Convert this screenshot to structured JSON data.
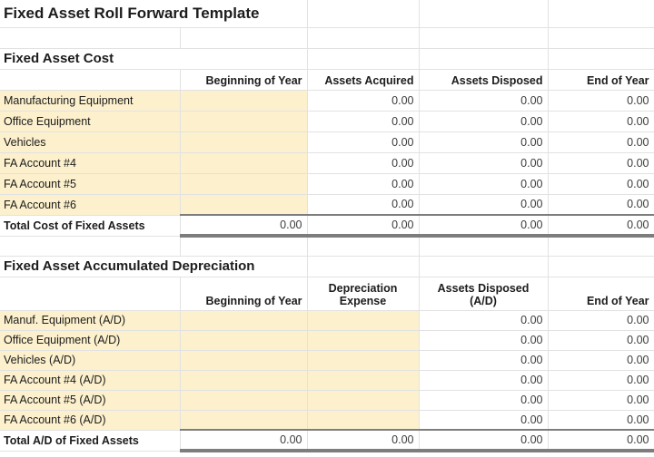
{
  "title": "Fixed Asset Roll Forward Template",
  "colors": {
    "input_cell_bg": "#fcf0cd",
    "gridline": "#e2e2e2",
    "total_rule": "#7d7d7d"
  },
  "sections": [
    {
      "heading": "Fixed Asset Cost",
      "columns": [
        "Beginning of Year",
        "Assets Acquired",
        "Assets Disposed",
        "End of Year"
      ],
      "rows": [
        {
          "label": "Manufacturing Equipment",
          "values": [
            null,
            "0.00",
            "0.00",
            "0.00"
          ]
        },
        {
          "label": "Office Equipment",
          "values": [
            null,
            "0.00",
            "0.00",
            "0.00"
          ]
        },
        {
          "label": "Vehicles",
          "values": [
            null,
            "0.00",
            "0.00",
            "0.00"
          ]
        },
        {
          "label": "FA Account #4",
          "values": [
            null,
            "0.00",
            "0.00",
            "0.00"
          ]
        },
        {
          "label": "FA Account #5",
          "values": [
            null,
            "0.00",
            "0.00",
            "0.00"
          ]
        },
        {
          "label": "FA Account #6",
          "values": [
            null,
            "0.00",
            "0.00",
            "0.00"
          ]
        }
      ],
      "total_row": {
        "label": "Total Cost of Fixed Assets",
        "values": [
          "0.00",
          "0.00",
          "0.00",
          "0.00"
        ]
      }
    },
    {
      "heading": "Fixed Asset Accumulated Depreciation",
      "columns": [
        "Beginning of Year",
        "Depreciation\nExpense",
        "Assets Disposed\n(A/D)",
        "End of Year"
      ],
      "rows": [
        {
          "label": "Manuf. Equipment (A/D)",
          "values": [
            null,
            null,
            "0.00",
            "0.00"
          ]
        },
        {
          "label": "Office Equipment (A/D)",
          "values": [
            null,
            null,
            "0.00",
            "0.00"
          ]
        },
        {
          "label": "Vehicles (A/D)",
          "values": [
            null,
            null,
            "0.00",
            "0.00"
          ]
        },
        {
          "label": "FA Account #4 (A/D)",
          "values": [
            null,
            null,
            "0.00",
            "0.00"
          ]
        },
        {
          "label": "FA Account #5 (A/D)",
          "values": [
            null,
            null,
            "0.00",
            "0.00"
          ]
        },
        {
          "label": "FA Account #6 (A/D)",
          "values": [
            null,
            null,
            "0.00",
            "0.00"
          ]
        }
      ],
      "total_row": {
        "label": "Total A/D of Fixed Assets",
        "values": [
          "0.00",
          "0.00",
          "0.00",
          "0.00"
        ]
      }
    }
  ]
}
